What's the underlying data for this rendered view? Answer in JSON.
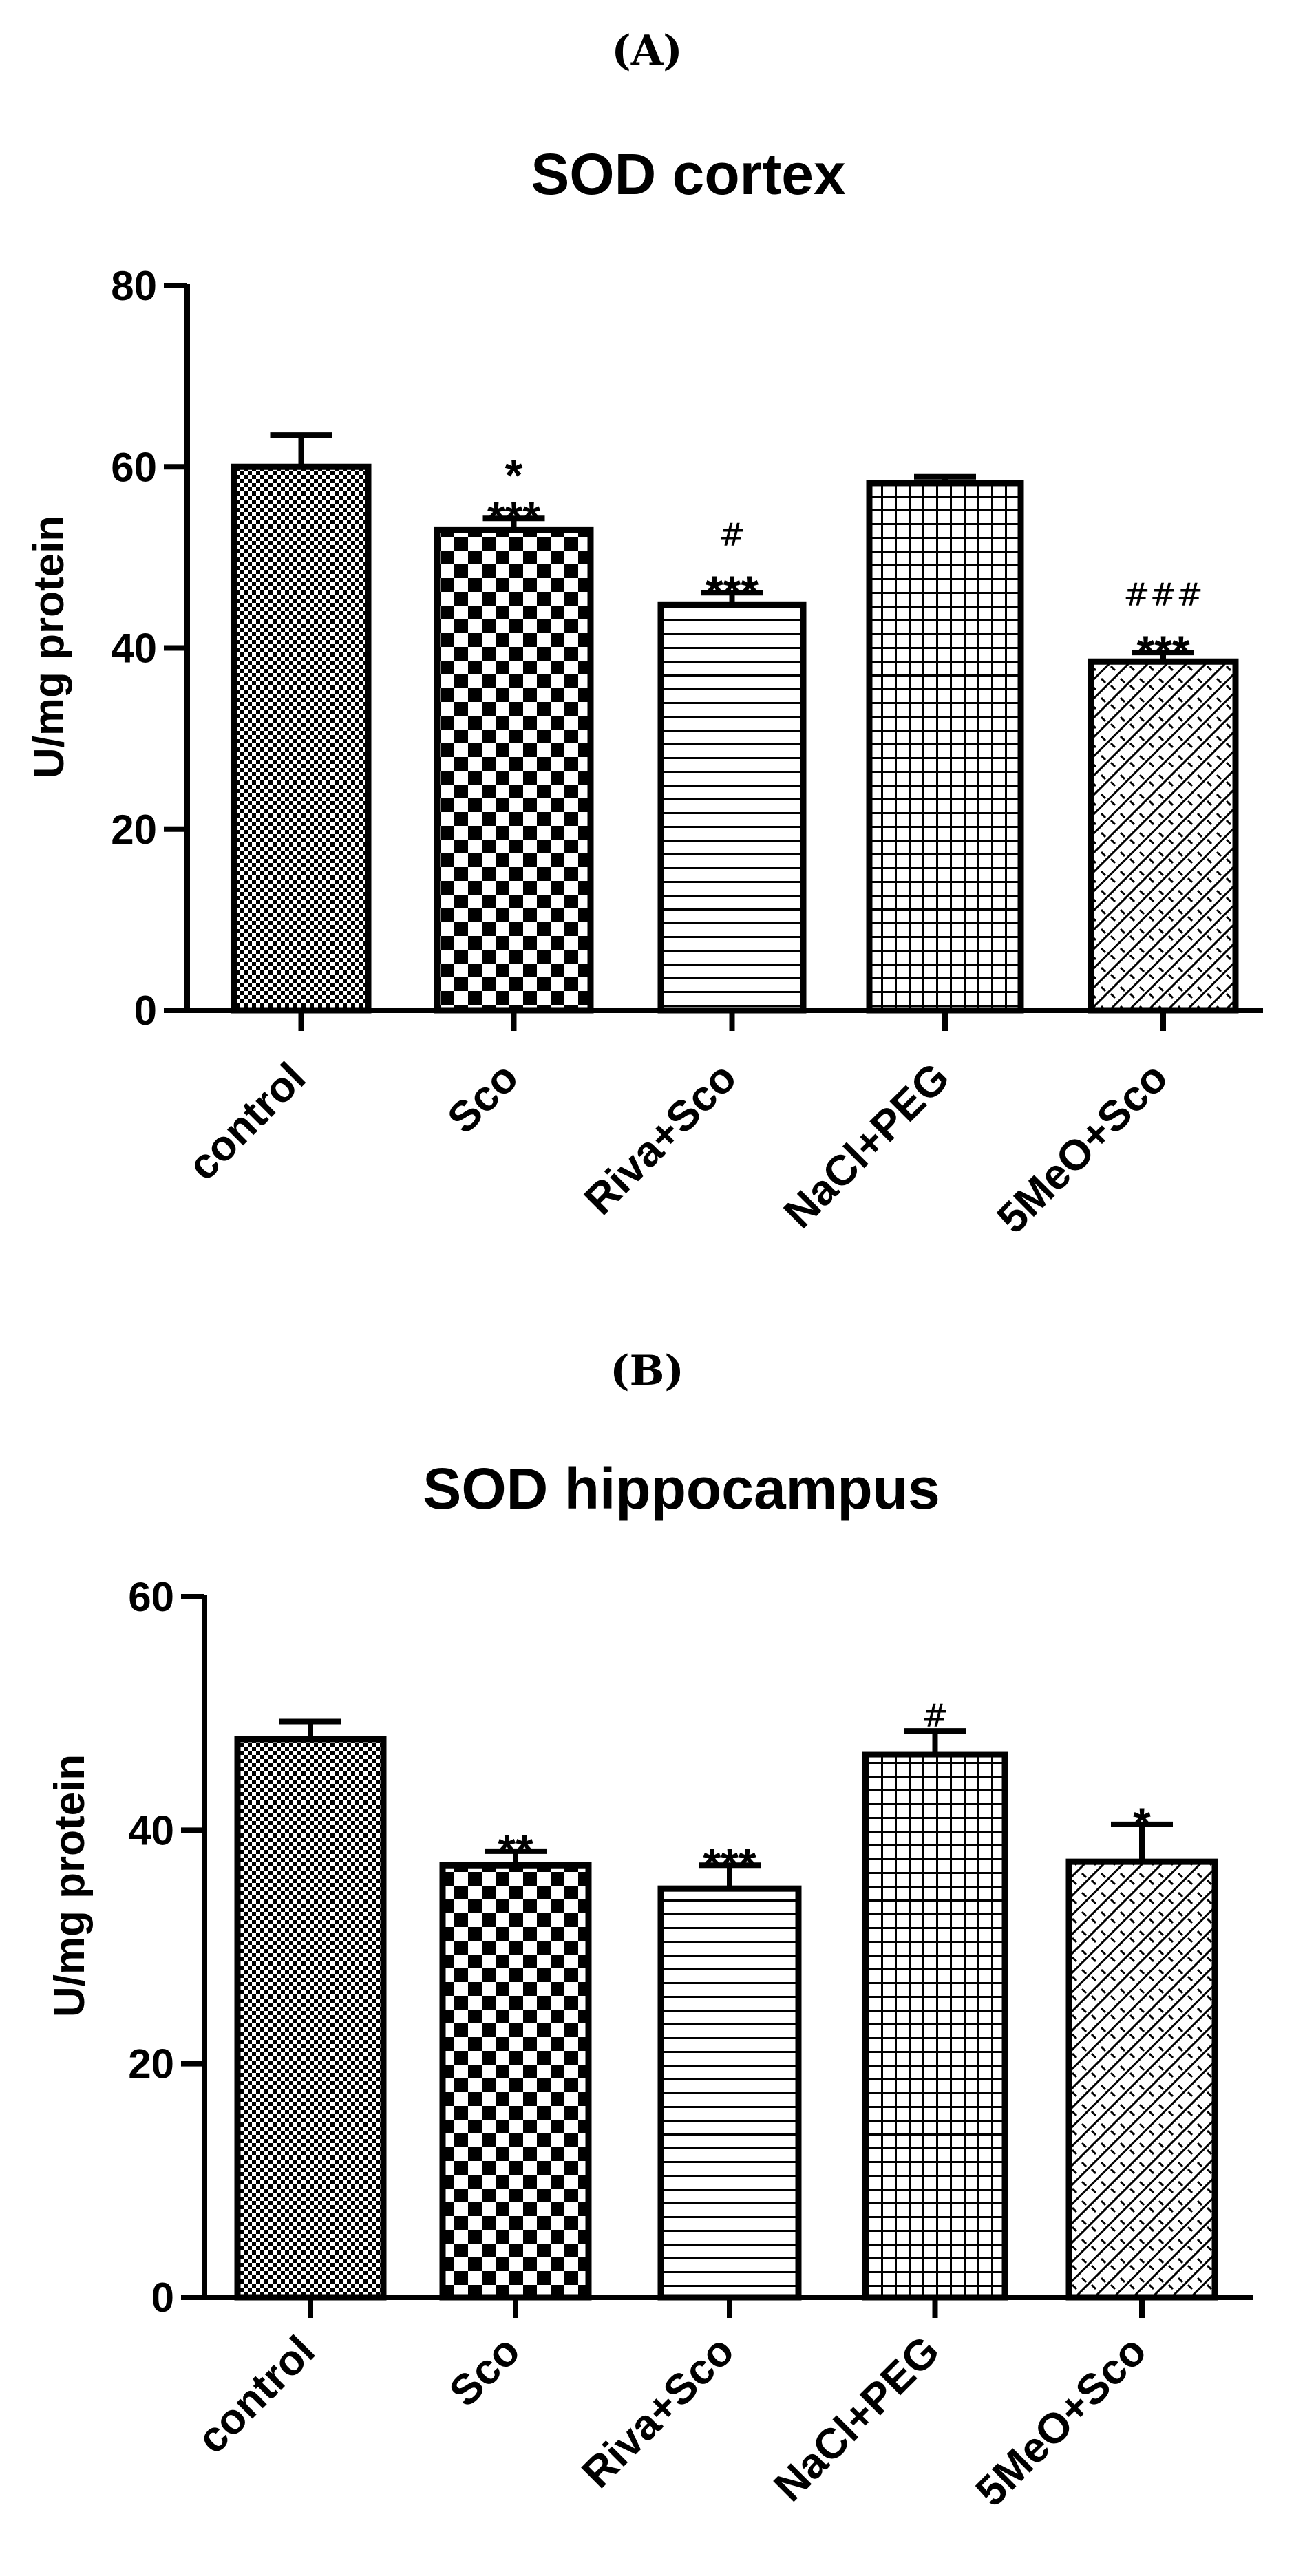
{
  "chart_data": [
    {
      "panel": "(A)",
      "type": "bar",
      "title": "SOD cortex",
      "xlabel": "",
      "ylabel": "U/mg protein",
      "ylim": [
        0,
        80
      ],
      "yticks": [
        0,
        20,
        40,
        60,
        80
      ],
      "categories": [
        "control",
        "Sco",
        "Riva+Sco",
        "NaCl+PEG",
        "5MeO+Sco"
      ],
      "values": [
        60.0,
        53.0,
        44.8,
        58.2,
        38.5
      ],
      "errors": [
        3.5,
        1.3,
        1.3,
        0.7,
        1.0
      ],
      "patterns": [
        "fine-check",
        "checker",
        "hlines",
        "grid",
        "diag-weave"
      ],
      "annotations": [
        {
          "category": "Sco",
          "lines": [
            {
              "text": "*",
              "style": "star"
            },
            {
              "text": "***",
              "style": "star"
            }
          ]
        },
        {
          "category": "Riva+Sco",
          "lines": [
            {
              "text": "#",
              "style": "hash"
            },
            {
              "text": "***",
              "style": "star"
            }
          ]
        },
        {
          "category": "5MeO+Sco",
          "lines": [
            {
              "text": "###",
              "style": "hash"
            },
            {
              "text": "***",
              "style": "star"
            }
          ]
        }
      ],
      "grid": false
    },
    {
      "panel": "(B)",
      "type": "bar",
      "title": "SOD hippocampus",
      "xlabel": "",
      "ylabel": "U/mg protein",
      "ylim": [
        0,
        60
      ],
      "yticks": [
        0,
        20,
        40,
        60
      ],
      "categories": [
        "control",
        "Sco",
        "Riva+Sco",
        "NaCl+PEG",
        "5MeO+Sco"
      ],
      "values": [
        47.8,
        37.0,
        35.0,
        46.5,
        37.3
      ],
      "errors": [
        1.5,
        1.2,
        2.0,
        2.0,
        3.2
      ],
      "patterns": [
        "fine-check",
        "checker",
        "hlines",
        "grid",
        "diag-weave"
      ],
      "annotations": [
        {
          "category": "Sco",
          "lines": [
            {
              "text": "**",
              "style": "star"
            }
          ]
        },
        {
          "category": "Riva+Sco",
          "lines": [
            {
              "text": "***",
              "style": "star"
            }
          ]
        },
        {
          "category": "NaCl+PEG",
          "lines": [
            {
              "text": "#",
              "style": "hash"
            }
          ]
        },
        {
          "category": "5MeO+Sco",
          "lines": [
            {
              "text": "*",
              "style": "star"
            }
          ]
        }
      ],
      "grid": false
    }
  ]
}
